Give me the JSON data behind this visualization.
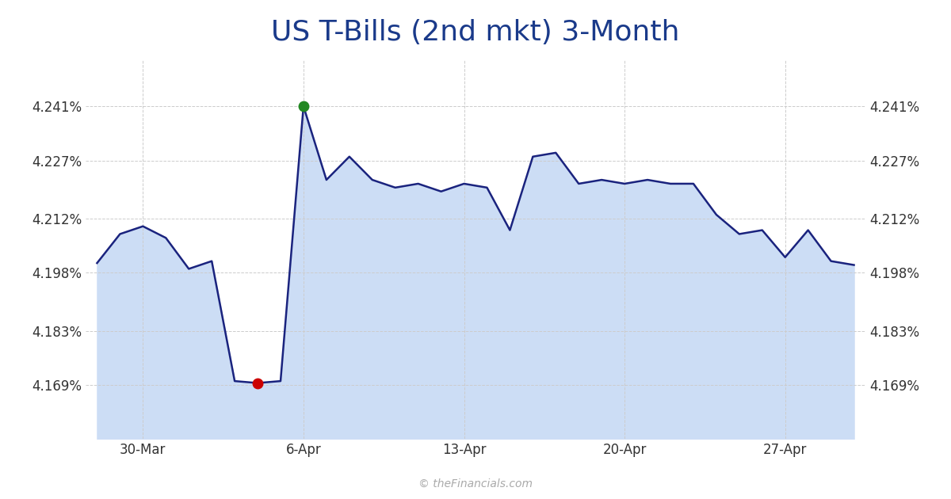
{
  "title": "US T-Bills (2nd mkt) 3-Month",
  "title_color": "#1a3a8a",
  "title_fontsize": 26,
  "background_color": "#ffffff",
  "plot_background": "#ffffff",
  "line_color": "#1a237e",
  "fill_color": "#ccddf5",
  "line_width": 1.8,
  "y_values": [
    4.2005,
    4.208,
    4.21,
    4.207,
    4.199,
    4.201,
    4.17,
    4.1695,
    4.17,
    4.241,
    4.222,
    4.228,
    4.222,
    4.22,
    4.221,
    4.219,
    4.221,
    4.22,
    4.209,
    4.228,
    4.229,
    4.221,
    4.222,
    4.221,
    4.222,
    4.221,
    4.221,
    4.213,
    4.208,
    4.209,
    4.202,
    4.209,
    4.201,
    4.2
  ],
  "yticks": [
    4.169,
    4.183,
    4.198,
    4.212,
    4.227,
    4.241
  ],
  "ytick_labels": [
    "4.169%",
    "4.183%",
    "4.198%",
    "4.212%",
    "4.227%",
    "4.241%"
  ],
  "ylim_min": 4.155,
  "ylim_max": 4.253,
  "xtick_positions": [
    2,
    9,
    16,
    23,
    30
  ],
  "xtick_labels": [
    "30-Mar",
    "6-Apr",
    "13-Apr",
    "20-Apr",
    "27-Apr"
  ],
  "min_marker_x": 7,
  "min_marker_y": 4.1695,
  "max_marker_x": 9,
  "max_marker_y": 4.241,
  "marker_size": 9,
  "min_marker_color": "#cc0000",
  "max_marker_color": "#228822",
  "grid_color": "#cccccc",
  "grid_linestyle": "--",
  "grid_linewidth": 0.7,
  "watermark": "© theFinancials.com",
  "watermark_color": "#aaaaaa",
  "watermark_fontsize": 10,
  "tick_label_fontsize": 12,
  "tick_label_color": "#333333"
}
